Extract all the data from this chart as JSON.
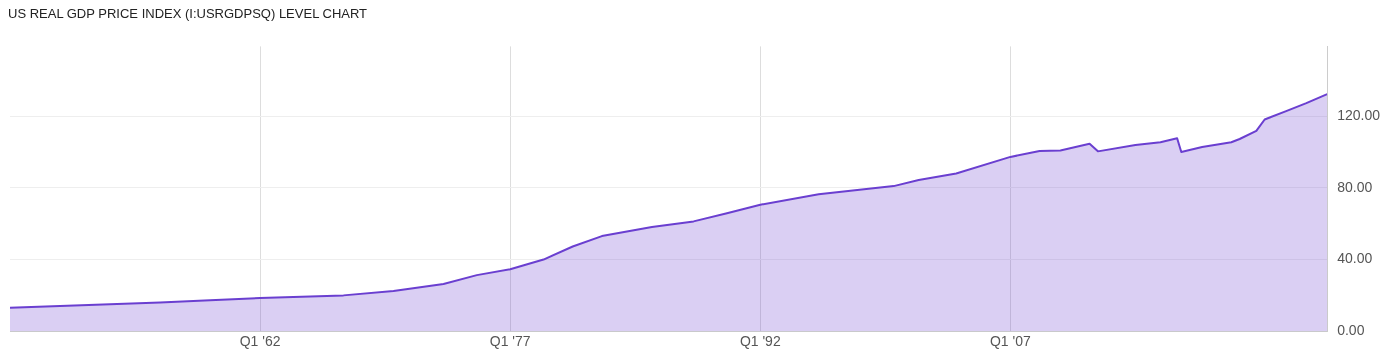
{
  "chart_data": {
    "type": "area",
    "title": "US REAL GDP PRICE INDEX (I:USRGDPSQ) LEVEL CHART",
    "x": [
      "1947-01",
      "1950-01",
      "1953-01",
      "1956-01",
      "1959-01",
      "1962-01",
      "1967-01",
      "1970-01",
      "1973-01",
      "1975-01",
      "1977-01",
      "1979-01",
      "1980-10",
      "1982-07",
      "1985-07",
      "1988-01",
      "1990-01",
      "1992-01",
      "1995-07",
      "2000-01",
      "2001-07",
      "2003-10",
      "2007-01",
      "2008-10",
      "2010-01",
      "2011-10",
      "2012-04",
      "2014-07",
      "2016-01",
      "2017-01",
      "2017-04",
      "2018-07",
      "2020-04",
      "2020-10",
      "2021-10",
      "2022-04",
      "2023-07",
      "2024-10",
      "2026-01"
    ],
    "series": [
      {
        "color": "#6a3fd0",
        "values": [
          13.1,
          14.0,
          15.0,
          16.0,
          17.3,
          18.5,
          20.0,
          22.4,
          26.4,
          31.3,
          34.6,
          40.0,
          47.3,
          53.1,
          58.2,
          61.3,
          65.8,
          70.6,
          76.4,
          81.0,
          84.4,
          88.0,
          97.3,
          100.6,
          100.9,
          104.6,
          100.4,
          104.0,
          105.5,
          107.7,
          100.0,
          102.8,
          105.5,
          107.3,
          111.8,
          118.2,
          122.7,
          127.3,
          132.4
        ]
      }
    ],
    "xlim": [
      "1947-01",
      "2026-01"
    ],
    "xticks": [
      {
        "value": "1962-01",
        "label": "Q1 '62"
      },
      {
        "value": "1977-01",
        "label": "Q1 '77"
      },
      {
        "value": "1992-01",
        "label": "Q1 '92"
      },
      {
        "value": "2007-01",
        "label": "Q1 '07"
      }
    ],
    "ylim": [
      0,
      159
    ],
    "yticks": [
      {
        "value": 0,
        "label": "0.00"
      },
      {
        "value": 40,
        "label": "40.00"
      },
      {
        "value": 80,
        "label": "80.00"
      },
      {
        "value": 120,
        "label": "120.00"
      }
    ],
    "grid": true
  }
}
